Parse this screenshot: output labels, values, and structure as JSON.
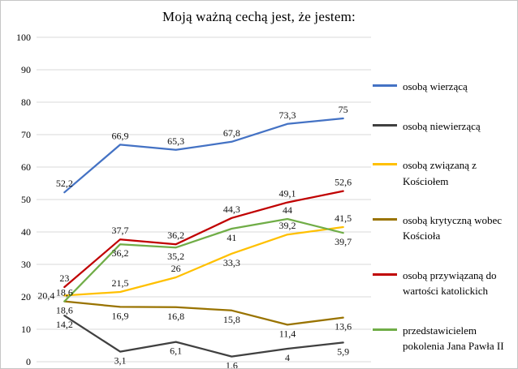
{
  "chart_data": {
    "type": "line",
    "title": "Moją ważną cechą jest, że jestem:",
    "x_count": 6,
    "xlabel": "",
    "ylabel": "",
    "ylim": [
      0,
      100
    ],
    "y_ticks": [
      0,
      10,
      20,
      30,
      40,
      50,
      60,
      70,
      80,
      90,
      100
    ],
    "grid": true,
    "grid_color": "#d9d9d9",
    "legend_position": "right",
    "series": [
      {
        "name": "osobą wierzącą",
        "color": "#4472C4",
        "values": [
          52.2,
          66.9,
          65.3,
          67.8,
          73.3,
          75
        ],
        "labels": [
          "52,2",
          "66,9",
          "65,3",
          "67,8",
          "73,3",
          "75"
        ],
        "label_pos": [
          "above",
          "above",
          "above",
          "above",
          "above",
          "above"
        ]
      },
      {
        "name": "osobą niewierzącą",
        "color": "#404040",
        "values": [
          14.2,
          3.1,
          6.1,
          1.6,
          4,
          5.9
        ],
        "labels": [
          "14,2",
          "3,1",
          "6,1",
          "1,6",
          "4",
          "5,9"
        ],
        "label_pos": [
          "below",
          "below",
          "below",
          "below",
          "below",
          "below"
        ]
      },
      {
        "name": "osobą związaną z Kościołem",
        "color": "#FFC000",
        "values": [
          20.4,
          21.5,
          26,
          33.3,
          39.2,
          41.5
        ],
        "labels": [
          "20,4",
          "21,5",
          "26",
          "33,3",
          "39,2",
          "41,5"
        ],
        "label_pos": [
          "left",
          "above",
          "above",
          "below",
          "above",
          "above"
        ]
      },
      {
        "name": "osobą krytyczną wobec Kościoła",
        "color": "#997300",
        "values": [
          18.6,
          16.9,
          16.8,
          15.8,
          11.4,
          13.6
        ],
        "labels": [
          "18,6",
          "16,9",
          "16,8",
          "15,8",
          "11,4",
          "13,6"
        ],
        "label_pos": [
          "above",
          "below",
          "below",
          "below",
          "below",
          "below"
        ]
      },
      {
        "name": "osobą przywiązaną do wartości katolickich",
        "color": "#C00000",
        "values": [
          23,
          37.7,
          36.2,
          44.3,
          49.1,
          52.6
        ],
        "labels": [
          "23",
          "37,7",
          "36,2",
          "44,3",
          "49,1",
          "52,6"
        ],
        "label_pos": [
          "above",
          "above",
          "above",
          "above",
          "above",
          "above"
        ]
      },
      {
        "name": "przedstawicielem pokolenia Jana Pawła II",
        "color": "#70AD47",
        "values": [
          18.6,
          36.2,
          35.2,
          41,
          44,
          39.7
        ],
        "labels": [
          "18,6",
          "36,2",
          "35,2",
          "41",
          "44",
          "39,7"
        ],
        "label_pos": [
          "below",
          "below",
          "below",
          "below",
          "above",
          "below"
        ]
      }
    ]
  }
}
